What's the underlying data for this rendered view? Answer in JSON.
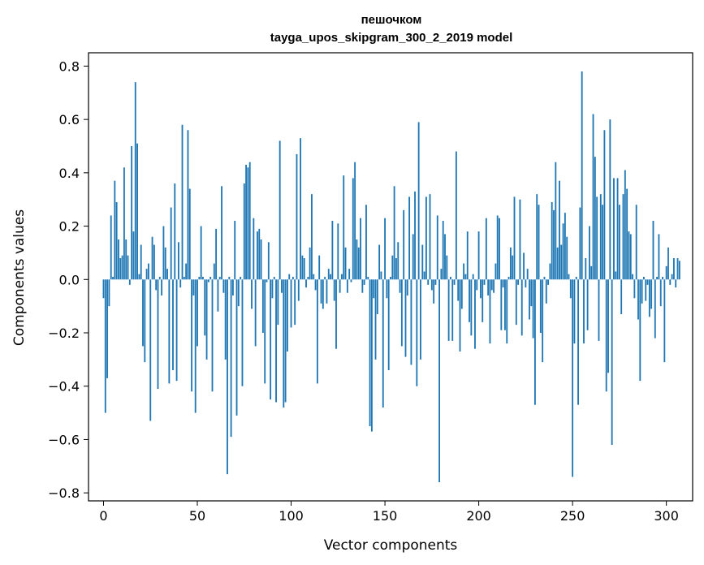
{
  "chart_data": {
    "type": "bar",
    "title": "пешочком",
    "subtitle": "tayga_upos_skipgram_300_2_2019 model",
    "xlabel": "Vector components",
    "ylabel": "Components values",
    "xlim": [
      -8,
      314
    ],
    "ylim": [
      -0.83,
      0.85
    ],
    "xticks": [
      0,
      50,
      100,
      150,
      200,
      250,
      300
    ],
    "yticks": [
      -0.8,
      -0.6,
      -0.4,
      -0.2,
      0.0,
      0.2,
      0.4,
      0.6,
      0.8
    ],
    "ytick_labels": [
      "−0.8",
      "−0.6",
      "−0.4",
      "−0.2",
      "0.0",
      "0.2",
      "0.4",
      "0.6",
      "0.8"
    ],
    "grid": false,
    "bar_color": "#1f77b4",
    "values": [
      -0.07,
      -0.5,
      -0.37,
      -0.1,
      0.24,
      0.01,
      0.37,
      0.29,
      0.15,
      0.08,
      0.09,
      0.42,
      0.15,
      0.09,
      -0.02,
      0.5,
      0.18,
      0.74,
      0.51,
      0.02,
      0.13,
      -0.25,
      -0.31,
      0.04,
      0.06,
      -0.53,
      0.16,
      0.13,
      -0.04,
      -0.41,
      0.01,
      -0.06,
      0.2,
      0.12,
      0.04,
      -0.39,
      0.27,
      -0.34,
      0.36,
      -0.38,
      0.14,
      -0.03,
      0.58,
      0.01,
      0.06,
      0.56,
      0.34,
      -0.42,
      -0.06,
      -0.5,
      -0.25,
      0.01,
      0.2,
      0.01,
      -0.21,
      -0.3,
      -0.01,
      0.01,
      -0.42,
      0.06,
      0.19,
      -0.12,
      0.01,
      0.35,
      -0.05,
      -0.3,
      -0.73,
      0.01,
      -0.59,
      -0.06,
      0.22,
      -0.51,
      -0.1,
      0.01,
      -0.4,
      0.36,
      0.43,
      0.42,
      0.44,
      -0.11,
      0.23,
      -0.25,
      0.18,
      0.19,
      0.15,
      -0.2,
      -0.39,
      -0.01,
      0.14,
      -0.45,
      -0.07,
      0.01,
      -0.46,
      -0.17,
      0.52,
      -0.05,
      -0.48,
      -0.46,
      -0.27,
      0.02,
      -0.18,
      0.01,
      -0.17,
      0.47,
      -0.08,
      0.53,
      0.09,
      0.08,
      -0.03,
      0.01,
      0.12,
      0.32,
      0.02,
      -0.04,
      -0.39,
      0.09,
      -0.09,
      -0.11,
      0.01,
      -0.09,
      0.04,
      0.02,
      0.22,
      -0.08,
      -0.26,
      0.21,
      -0.05,
      0.02,
      0.39,
      0.12,
      -0.05,
      0.04,
      -0.01,
      0.38,
      0.44,
      0.15,
      0.12,
      0.23,
      -0.05,
      -0.02,
      0.28,
      0.01,
      -0.55,
      -0.57,
      -0.07,
      -0.3,
      -0.13,
      0.13,
      0.03,
      -0.48,
      0.23,
      -0.07,
      -0.34,
      0.01,
      0.09,
      0.35,
      0.08,
      0.14,
      -0.05,
      -0.25,
      0.26,
      -0.29,
      -0.06,
      0.31,
      -0.32,
      0.17,
      0.33,
      -0.4,
      0.59,
      -0.3,
      0.13,
      0.03,
      0.31,
      -0.02,
      0.32,
      -0.04,
      -0.09,
      -0.02,
      0.24,
      -0.76,
      0.04,
      0.22,
      0.17,
      0.09,
      -0.23,
      0.01,
      -0.23,
      -0.02,
      0.48,
      -0.08,
      -0.27,
      -0.11,
      0.06,
      0.02,
      0.18,
      -0.16,
      -0.21,
      0.02,
      -0.26,
      -0.04,
      0.18,
      -0.07,
      -0.16,
      -0.02,
      0.23,
      -0.06,
      -0.24,
      -0.04,
      -0.05,
      0.06,
      0.24,
      0.23,
      -0.19,
      -0.03,
      -0.19,
      -0.24,
      0.01,
      0.12,
      0.09,
      0.31,
      -0.17,
      -0.02,
      0.3,
      -0.21,
      0.1,
      -0.03,
      0.04,
      -0.15,
      -0.1,
      -0.22,
      -0.47,
      0.32,
      0.28,
      -0.2,
      -0.31,
      0.01,
      -0.09,
      -0.02,
      0.06,
      0.29,
      0.26,
      0.44,
      0.12,
      0.37,
      0.13,
      0.21,
      0.25,
      0.16,
      0.02,
      -0.07,
      -0.74,
      -0.24,
      0.01,
      -0.47,
      0.27,
      0.78,
      -0.24,
      0.08,
      -0.19,
      0.2,
      0.05,
      0.62,
      0.46,
      0.31,
      -0.23,
      0.32,
      0.28,
      0.56,
      -0.42,
      -0.35,
      0.6,
      -0.62,
      0.38,
      0.03,
      0.38,
      0.28,
      -0.13,
      0.32,
      0.41,
      0.34,
      0.18,
      0.17,
      0.02,
      -0.07,
      0.28,
      -0.15,
      -0.38,
      -0.09,
      0.01,
      -0.08,
      -0.02,
      -0.14,
      -0.11,
      0.22,
      -0.22,
      0.01,
      0.17,
      -0.1,
      0.01,
      -0.31,
      0.05,
      0.12,
      -0.02,
      0.02,
      0.08,
      -0.03,
      0.08,
      0.07
    ]
  }
}
